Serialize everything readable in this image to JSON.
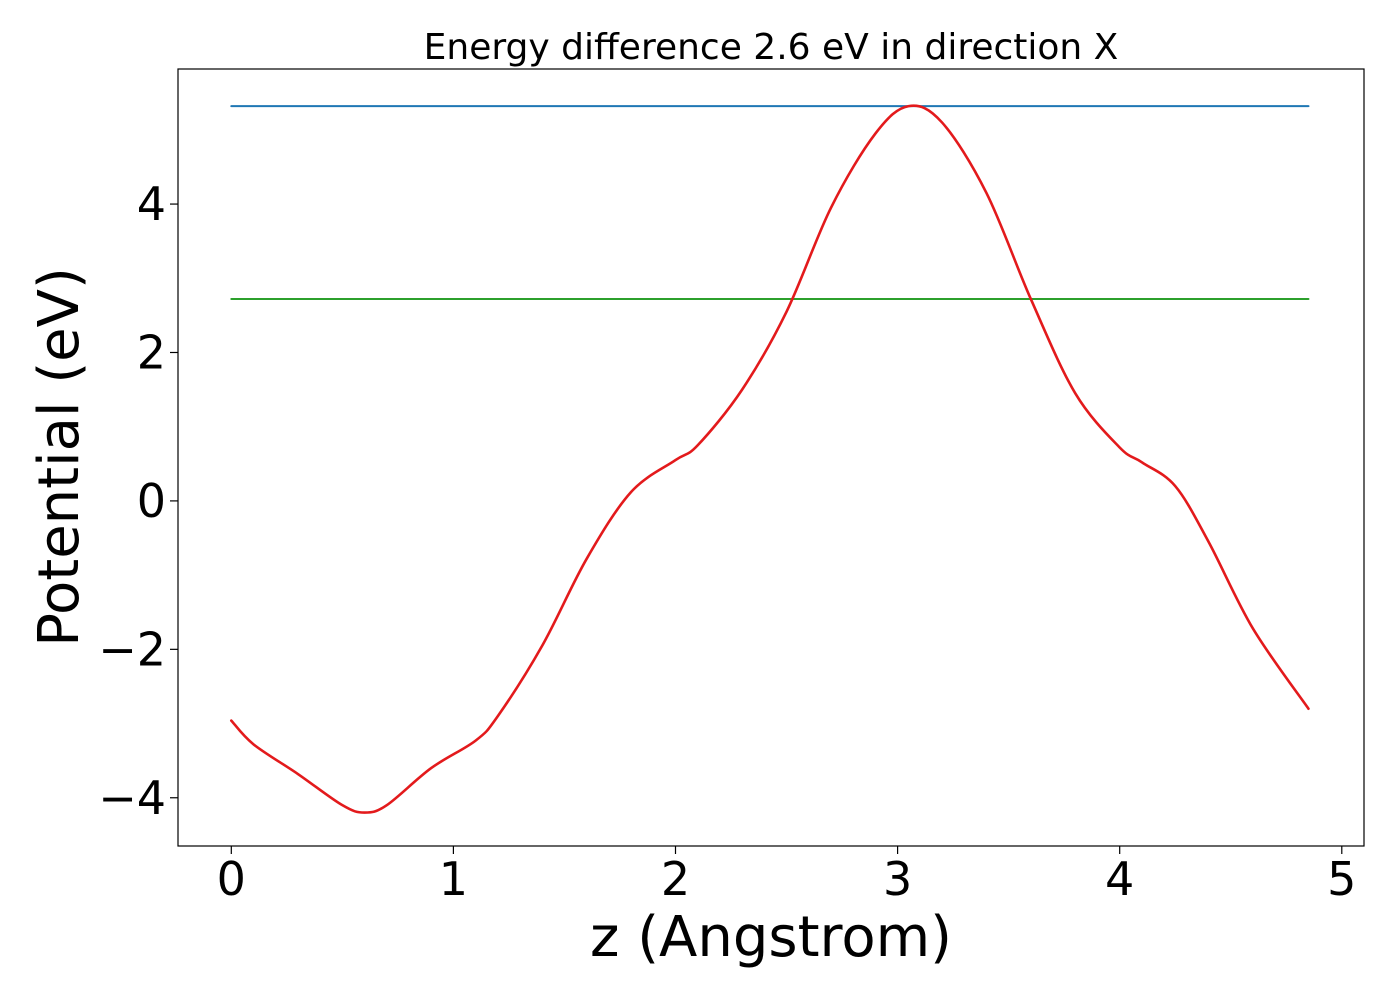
{
  "chart_data": {
    "type": "line",
    "title": "Energy difference 2.6 eV in direction X",
    "xlabel": "z (Angstrom)",
    "ylabel": "Potential (eV)",
    "xlim": [
      -0.24,
      5.1
    ],
    "ylim": [
      -4.65,
      5.82
    ],
    "grid": false,
    "xticks": [
      0,
      1,
      2,
      3,
      4,
      5
    ],
    "xtick_labels": [
      "0",
      "1",
      "2",
      "3",
      "4",
      "5"
    ],
    "yticks": [
      -4,
      -2,
      0,
      2,
      4
    ],
    "ytick_labels": [
      "−4",
      "−2",
      "0",
      "2",
      "4"
    ],
    "series": [
      {
        "color": "#1f77b4",
        "x": [
          0,
          4.85
        ],
        "y": [
          5.32,
          5.32
        ]
      },
      {
        "color": "#2ca02c",
        "x": [
          0,
          4.85
        ],
        "y": [
          2.72,
          2.72
        ]
      },
      {
        "color": "#e31a1c",
        "x": [
          0,
          0.1,
          0.3,
          0.5,
          0.6,
          0.7,
          0.9,
          1.1,
          1.2,
          1.4,
          1.6,
          1.8,
          2.0,
          2.1,
          2.3,
          2.5,
          2.7,
          2.9,
          3.05,
          3.2,
          3.4,
          3.6,
          3.8,
          4.0,
          4.1,
          4.25,
          4.4,
          4.6,
          4.85
        ],
        "y": [
          -2.96,
          -3.28,
          -3.68,
          -4.1,
          -4.2,
          -4.1,
          -3.6,
          -3.23,
          -2.9,
          -1.95,
          -0.78,
          0.12,
          0.55,
          0.75,
          1.5,
          2.55,
          3.95,
          4.95,
          5.32,
          5.1,
          4.15,
          2.72,
          1.45,
          0.72,
          0.52,
          0.2,
          -0.55,
          -1.72,
          -2.8
        ]
      }
    ]
  }
}
